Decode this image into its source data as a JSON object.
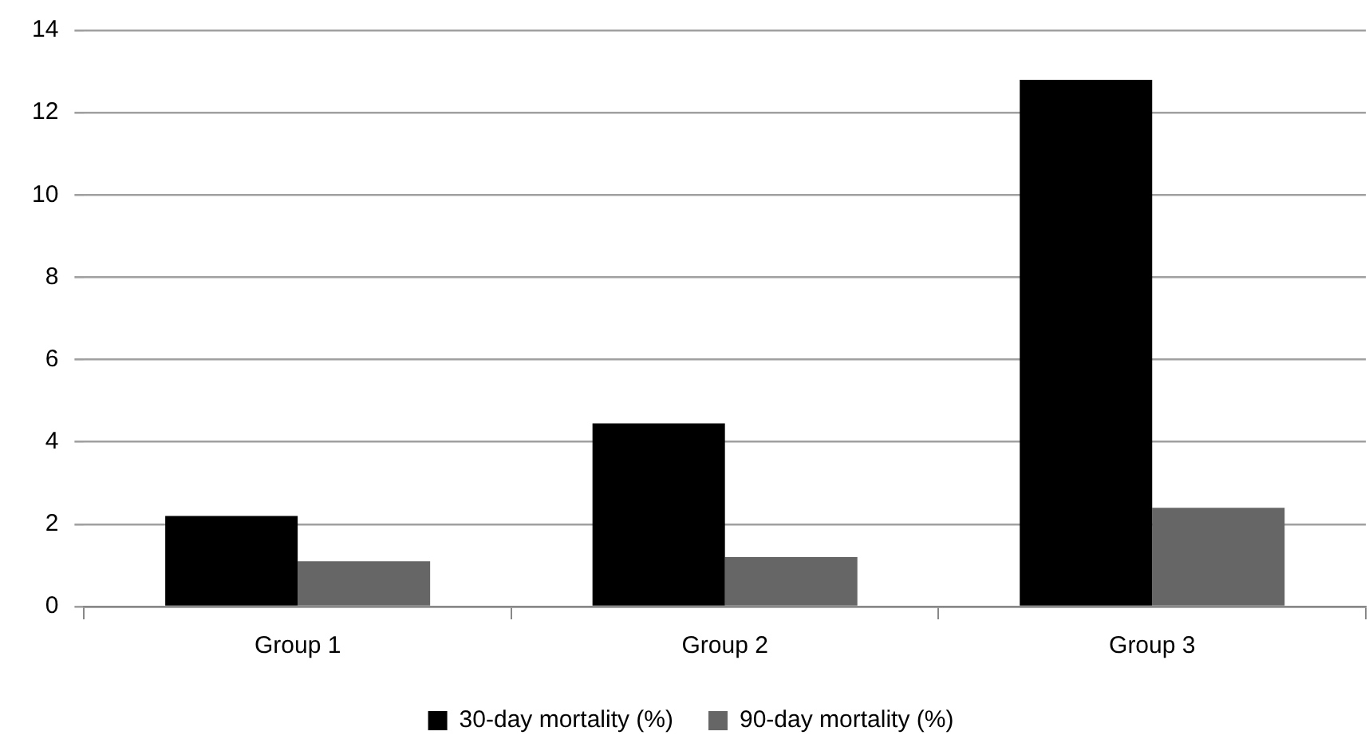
{
  "chart_data": {
    "type": "bar",
    "categories": [
      "Group 1",
      "Group 2",
      "Group 3"
    ],
    "series": [
      {
        "name": "30-day mortality (%)",
        "color": "#000000",
        "values": [
          2.2,
          4.45,
          12.8
        ]
      },
      {
        "name": "90-day mortality (%)",
        "color": "#666666",
        "values": [
          1.1,
          1.2,
          2.4
        ]
      }
    ],
    "ylim": [
      0,
      14
    ],
    "yticks": [
      0,
      2,
      4,
      6,
      8,
      10,
      12,
      14
    ],
    "grid": "y",
    "legend": "bottom"
  }
}
